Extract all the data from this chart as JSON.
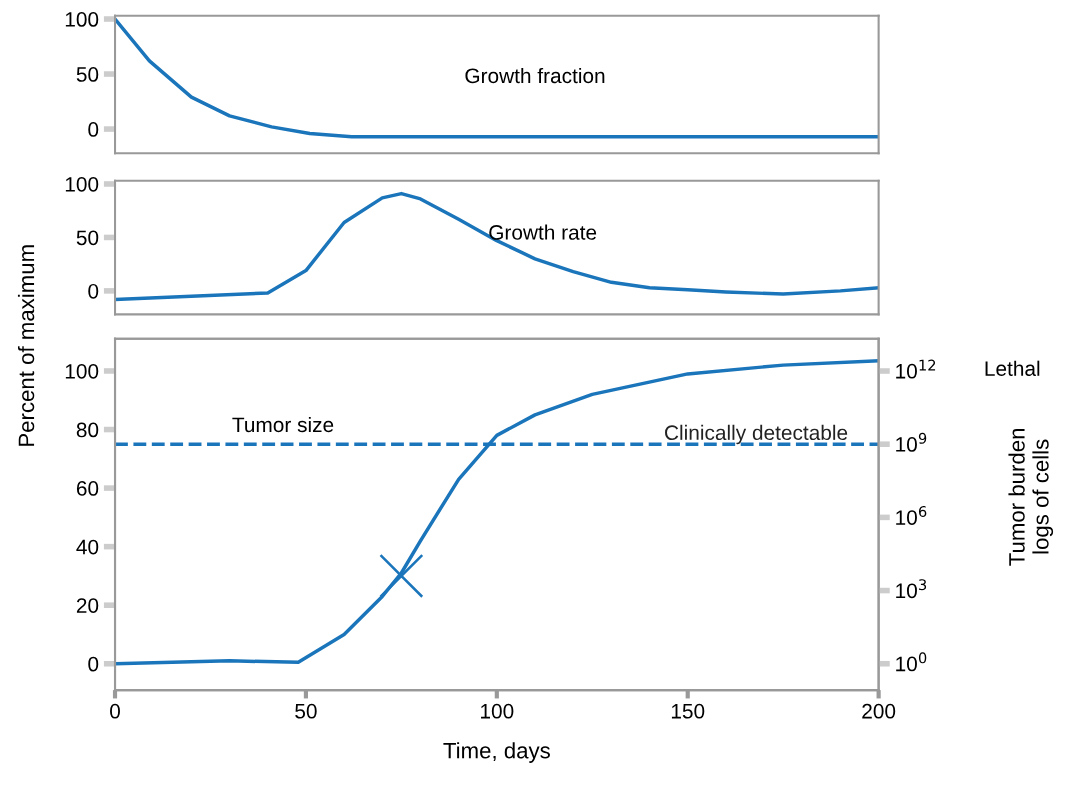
{
  "chart_data": [
    {
      "type": "line",
      "x": [
        0,
        9,
        20,
        30,
        41,
        51,
        62,
        80,
        120,
        160,
        200
      ],
      "tick_labels": "y",
      "xlim": [
        0,
        200
      ],
      "ylim": [
        -22,
        103
      ],
      "yticks": [
        0,
        50,
        100
      ],
      "annotations": [
        "Growth fraction"
      ],
      "series": [
        {
          "color": "#1b75bb",
          "values": [
            100,
            62,
            29,
            12,
            2,
            -4,
            -7,
            -7,
            -7,
            -7,
            -7
          ]
        }
      ]
    },
    {
      "type": "line",
      "x": [
        0,
        40,
        50,
        60,
        70,
        75,
        80,
        90,
        100,
        110,
        120,
        130,
        140,
        150,
        160,
        175,
        190,
        200
      ],
      "tick_labels": "y",
      "xlim": [
        0,
        200
      ],
      "ylim": [
        -22,
        103
      ],
      "yticks": [
        0,
        50,
        100
      ],
      "annotations": [
        "Growth rate"
      ],
      "series": [
        {
          "color": "#1b75bb",
          "values": [
            -8,
            -2,
            19,
            64,
            87,
            91,
            86,
            67,
            47,
            30,
            18,
            8,
            3,
            1,
            -1,
            -3,
            0,
            3
          ]
        }
      ]
    },
    {
      "type": "line",
      "x": [
        0,
        30,
        48,
        60,
        70,
        75,
        80,
        90,
        100,
        110,
        125,
        150,
        175,
        200
      ],
      "xlim": [
        0,
        200
      ],
      "ylim": [
        -9,
        111
      ],
      "xticks": [
        0,
        50,
        100,
        150,
        200
      ],
      "yticks": [
        0,
        20,
        40,
        60,
        80,
        100
      ],
      "log": "y2",
      "y2lim": [
        0.083,
        21000000000000.0
      ],
      "y2ticks": [
        {
          "value": 1,
          "label": "10$^{0}$"
        },
        {
          "value": 1000.0,
          "label": "10$^{3}$"
        },
        {
          "value": 1000000.0,
          "label": "10$^{6}$"
        },
        {
          "value": 1000000000.0,
          "label": "10$^{9}$"
        },
        {
          "value": 1000000000000.0,
          "label": "10$^{12}$"
        }
      ],
      "xlabel": "Time, days",
      "ylabel": "Percent of maximum",
      "y2label": "Tumor burden\nlogs of cells",
      "annotations": [
        "Tumor size",
        "Lethal"
      ],
      "ref_lines": [
        {
          "axis": "y",
          "value": 75,
          "label": "Clinically detectable",
          "color": "#1b75bb",
          "line_style": "dashed"
        }
      ],
      "series": [
        {
          "color": "#1b75bb",
          "values": [
            0,
            1,
            0.5,
            10,
            23,
            31,
            42,
            63,
            78,
            85,
            92,
            99,
            102,
            103.5
          ]
        },
        {
          "type": "scatter",
          "color": "#1b75bb",
          "marker": "cross",
          "x": [
            75
          ],
          "values": [
            30
          ]
        }
      ]
    }
  ]
}
